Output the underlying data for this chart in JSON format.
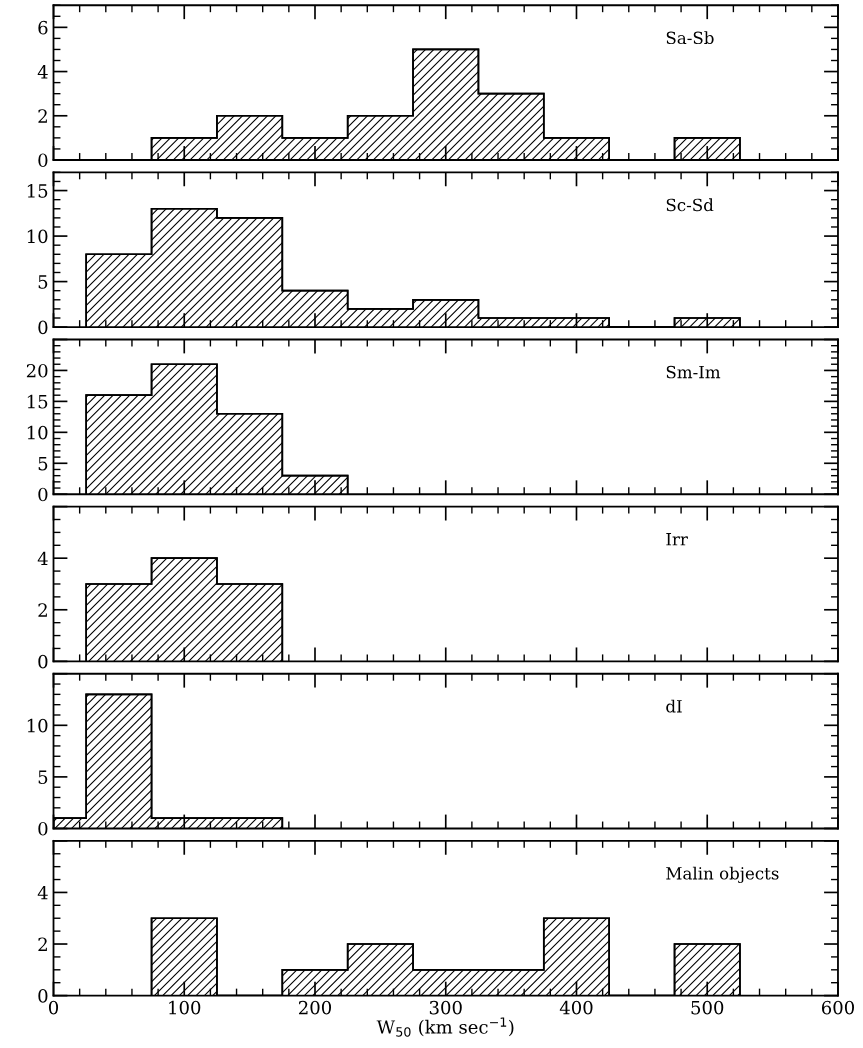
{
  "chart_data": [
    {
      "type": "histogram",
      "annotations": [
        "Sa-Sb"
      ],
      "bins": [
        75,
        125,
        175,
        225,
        275,
        325,
        375,
        425,
        475,
        525
      ],
      "values": [
        1,
        2,
        1,
        2,
        5,
        3,
        1,
        0,
        1
      ],
      "color": "#000000",
      "xlim": [
        0,
        600
      ],
      "xticks": [
        0,
        100,
        200,
        300,
        400,
        500,
        600
      ],
      "ylim": [
        0,
        7
      ],
      "yticks": [
        0,
        2,
        4,
        6
      ],
      "tick_labels": "y"
    },
    {
      "type": "histogram",
      "annotations": [
        "Sc-Sd"
      ],
      "bins": [
        25,
        75,
        125,
        175,
        225,
        275,
        325,
        375,
        425,
        475,
        525
      ],
      "values": [
        8,
        13,
        12,
        4,
        2,
        3,
        1,
        1,
        0,
        1
      ],
      "color": "#000000",
      "xlim": [
        0,
        600
      ],
      "xticks": [
        0,
        100,
        200,
        300,
        400,
        500,
        600
      ],
      "ylim": [
        0,
        17
      ],
      "yticks": [
        0,
        5,
        10,
        15
      ],
      "tick_labels": "y"
    },
    {
      "type": "histogram",
      "annotations": [
        "Sm-Im"
      ],
      "bins": [
        25,
        75,
        125,
        175,
        225
      ],
      "values": [
        16,
        21,
        13,
        3
      ],
      "color": "#000000",
      "xlim": [
        0,
        600
      ],
      "xticks": [
        0,
        100,
        200,
        300,
        400,
        500,
        600
      ],
      "ylim": [
        0,
        25
      ],
      "yticks": [
        0,
        5,
        10,
        15,
        20,
        {
          "value": 25,
          "label": null
        }
      ],
      "tick_labels": "y"
    },
    {
      "type": "histogram",
      "annotations": [
        "Irr"
      ],
      "bins": [
        25,
        75,
        125,
        175
      ],
      "values": [
        3,
        4,
        3
      ],
      "color": "#000000",
      "xlim": [
        0,
        600
      ],
      "xticks": [
        0,
        100,
        200,
        300,
        400,
        500,
        600
      ],
      "ylim": [
        0,
        6
      ],
      "yticks": [
        0,
        2,
        4,
        {
          "value": 6,
          "label": null
        }
      ],
      "tick_labels": "y"
    },
    {
      "type": "histogram",
      "annotations": [
        "dI"
      ],
      "bins": [
        0,
        25,
        75,
        125,
        175
      ],
      "values": [
        1,
        13,
        1,
        1
      ],
      "color": "#000000",
      "xlim": [
        0,
        600
      ],
      "xticks": [
        0,
        100,
        200,
        300,
        400,
        500,
        600
      ],
      "ylim": [
        0,
        15
      ],
      "yticks": [
        0,
        5,
        10,
        {
          "value": 15,
          "label": null
        }
      ],
      "tick_labels": "y"
    },
    {
      "type": "histogram",
      "annotations": [
        "Malin objects"
      ],
      "xlabel": "W$_{50}$ (km sec$^{−1}$)",
      "bins": [
        75,
        125,
        175,
        225,
        275,
        325,
        375,
        425,
        475,
        525
      ],
      "values": [
        3,
        0,
        1,
        2,
        1,
        1,
        3,
        0,
        2
      ],
      "color": "#000000",
      "xlim": [
        0,
        600
      ],
      "xticks": [
        0,
        100,
        200,
        300,
        400,
        500,
        600
      ],
      "ylim": [
        0,
        6
      ],
      "yticks": [
        0,
        2,
        4,
        {
          "value": 6,
          "label": null
        }
      ]
    }
  ]
}
